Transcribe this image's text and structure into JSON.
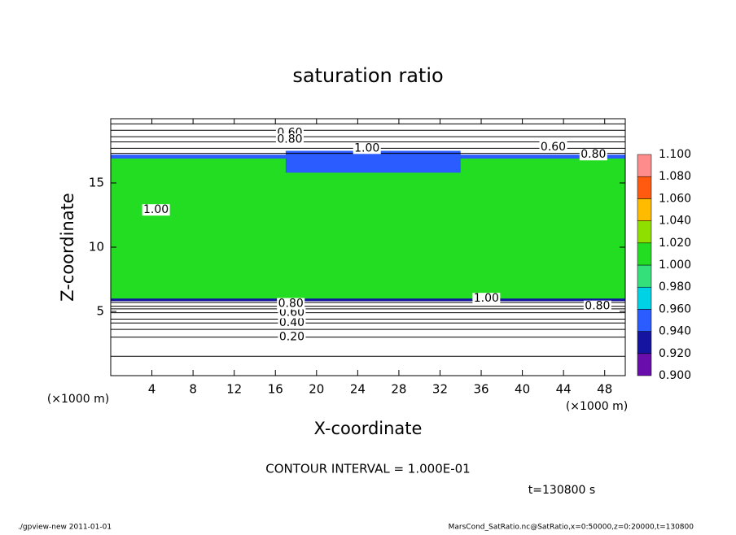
{
  "chart_data": {
    "type": "contour",
    "title": "saturation ratio",
    "xlabel": "X-coordinate",
    "ylabel": "Z-coordinate",
    "x_unit": "(×1000 m)",
    "xlim": [
      0,
      50
    ],
    "xticks": [
      4,
      8,
      12,
      16,
      20,
      24,
      28,
      32,
      36,
      40,
      44,
      48
    ],
    "ylim": [
      0,
      20
    ],
    "yticks": [
      5,
      10,
      15
    ],
    "levels": [
      {
        "value": 0.9,
        "label": "0.900"
      },
      {
        "value": 0.92,
        "label": "0.920"
      },
      {
        "value": 0.94,
        "label": "0.940"
      },
      {
        "value": 0.96,
        "label": "0.960"
      },
      {
        "value": 0.98,
        "label": "0.980"
      },
      {
        "value": 1.0,
        "label": "1.000"
      },
      {
        "value": 1.02,
        "label": "1.020"
      },
      {
        "value": 1.04,
        "label": "1.040"
      },
      {
        "value": 1.06,
        "label": "1.060"
      },
      {
        "value": 1.08,
        "label": "1.080"
      },
      {
        "value": 1.1,
        "label": "1.100"
      }
    ],
    "colors": [
      "#6a0dad",
      "#1414a0",
      "#2a5cff",
      "#00d2e6",
      "#33e07a",
      "#22dd22",
      "#8fe000",
      "#ffbb00",
      "#ff5a10",
      "#ff8c8c"
    ],
    "field": [
      {
        "x0": 0,
        "x1": 50,
        "z0": 5.9,
        "z1": 17.0,
        "value": 1.005
      },
      {
        "x0": 0,
        "x1": 50,
        "z0": 16.9,
        "z1": 17.2,
        "value": 0.95
      },
      {
        "x0": 17,
        "x1": 34,
        "z0": 15.8,
        "z1": 17.5,
        "value": 0.95
      },
      {
        "x0": 0,
        "x1": 50,
        "z0": 5.8,
        "z1": 6.0,
        "value": 0.93
      }
    ],
    "contour_z": [
      1.5,
      3.0,
      3.6,
      4.1,
      4.4,
      4.9,
      5.2,
      5.4,
      5.7,
      17.3,
      17.7,
      18.2,
      18.6,
      19.1,
      19.6
    ],
    "contour_labels": [
      {
        "text": "0.20",
        "x": 17.6,
        "z": 3.0
      },
      {
        "text": "0.40",
        "x": 17.6,
        "z": 4.1
      },
      {
        "text": "0.60",
        "x": 17.6,
        "z": 4.9
      },
      {
        "text": "0.80",
        "x": 17.5,
        "z": 5.6
      },
      {
        "text": "1.00",
        "x": 4.4,
        "z": 12.9
      },
      {
        "text": "1.00",
        "x": 36.5,
        "z": 6.0
      },
      {
        "text": "0.80",
        "x": 47.3,
        "z": 5.4
      },
      {
        "text": "0.60",
        "x": 17.4,
        "z": 18.9
      },
      {
        "text": "0.80",
        "x": 17.4,
        "z": 18.4
      },
      {
        "text": "1.00",
        "x": 24.9,
        "z": 17.7
      },
      {
        "text": "0.60",
        "x": 43.0,
        "z": 17.8
      },
      {
        "text": "0.80",
        "x": 46.9,
        "z": 17.2
      }
    ],
    "interval_note": "CONTOUR INTERVAL = 1.000E-01",
    "time_note": "t=130800 s",
    "footer_left": "./gpview-new  2011-01-01",
    "footer_right": "MarsCond_SatRatio.nc@SatRatio,x=0:50000,z=0:20000,t=130800"
  }
}
